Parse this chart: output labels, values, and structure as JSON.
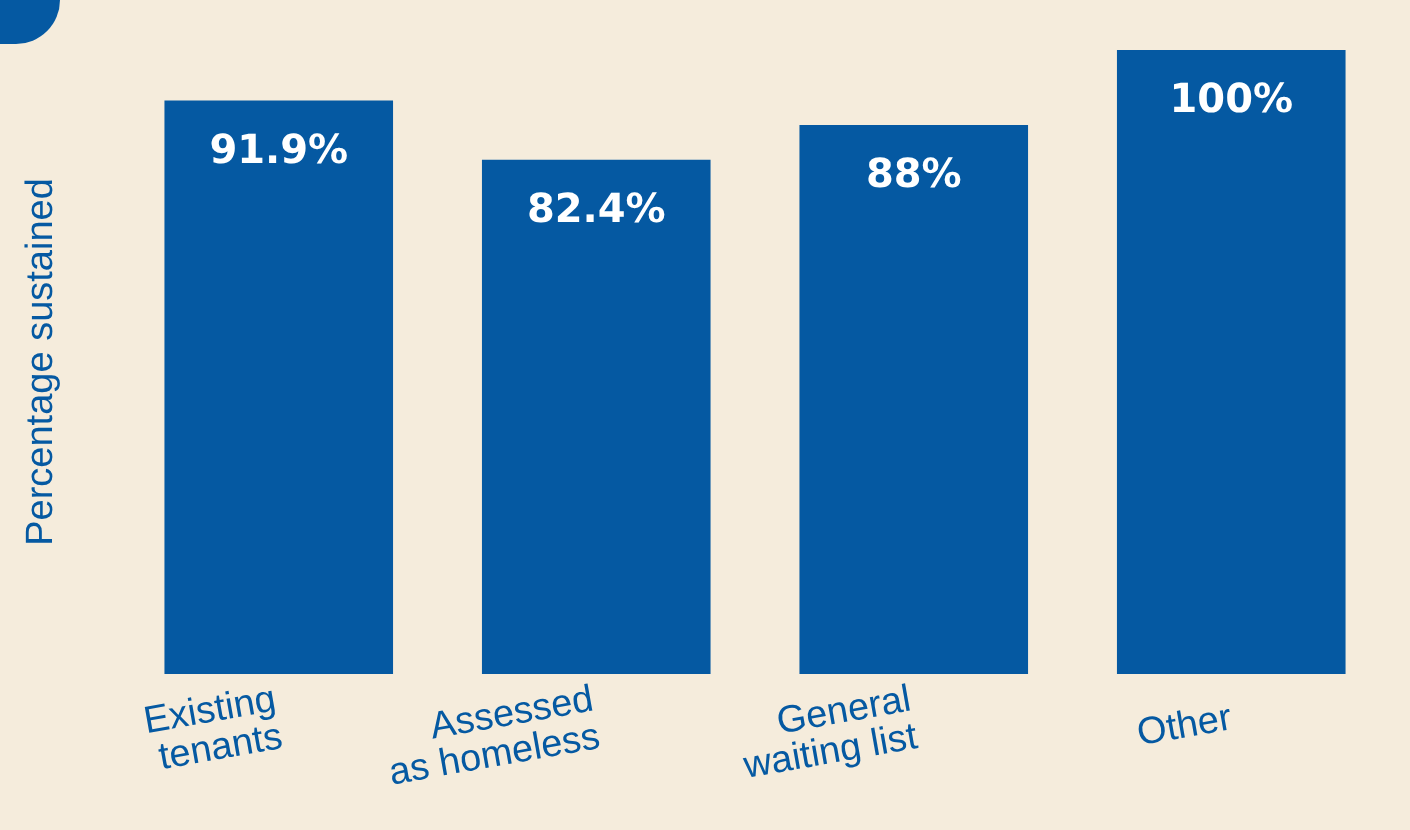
{
  "chart_data": {
    "type": "bar",
    "ylabel": "Percentage sustained",
    "categories": [
      "Existing\ntenants",
      "Assessed\nas homeless",
      "General\nwaiting list",
      "Other"
    ],
    "values": [
      91.9,
      82.4,
      88,
      100
    ],
    "value_labels": [
      "91.9%",
      "82.4%",
      "88%",
      "100%"
    ],
    "color": "#0559a2"
  }
}
